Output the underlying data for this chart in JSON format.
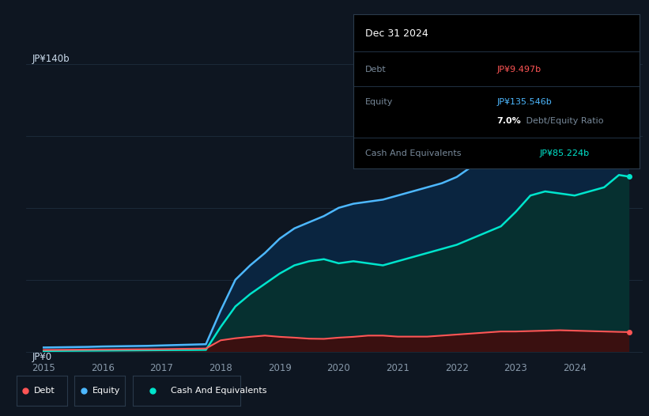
{
  "bg_color": "#0e1621",
  "plot_bg_color": "#0e1621",
  "grid_color": "#1e2d3d",
  "years": [
    2015.0,
    2015.25,
    2015.5,
    2015.75,
    2016.0,
    2016.25,
    2016.5,
    2016.75,
    2017.0,
    2017.25,
    2017.5,
    2017.75,
    2018.0,
    2018.25,
    2018.5,
    2018.75,
    2019.0,
    2019.25,
    2019.5,
    2019.75,
    2020.0,
    2020.25,
    2020.5,
    2020.75,
    2021.0,
    2021.25,
    2021.5,
    2021.75,
    2022.0,
    2022.25,
    2022.5,
    2022.75,
    2023.0,
    2023.25,
    2023.5,
    2023.75,
    2024.0,
    2024.25,
    2024.5,
    2024.75,
    2024.92
  ],
  "equity": [
    2.0,
    2.1,
    2.2,
    2.3,
    2.5,
    2.6,
    2.7,
    2.8,
    3.0,
    3.2,
    3.4,
    3.6,
    20.0,
    35.0,
    42.0,
    48.0,
    55.0,
    60.0,
    63.0,
    66.0,
    70.0,
    72.0,
    73.0,
    74.0,
    76.0,
    78.0,
    80.0,
    82.0,
    85.0,
    90.0,
    95.0,
    100.0,
    110.0,
    118.0,
    122.0,
    125.0,
    128.0,
    130.0,
    132.0,
    140.0,
    135.546
  ],
  "cash": [
    0.3,
    0.35,
    0.4,
    0.45,
    0.5,
    0.55,
    0.6,
    0.65,
    0.7,
    0.75,
    0.8,
    0.85,
    12.0,
    22.0,
    28.0,
    33.0,
    38.0,
    42.0,
    44.0,
    45.0,
    43.0,
    44.0,
    43.0,
    42.0,
    44.0,
    46.0,
    48.0,
    50.0,
    52.0,
    55.0,
    58.0,
    61.0,
    68.0,
    76.0,
    78.0,
    77.0,
    76.0,
    78.0,
    80.0,
    86.0,
    85.224
  ],
  "debt": [
    0.8,
    0.85,
    0.9,
    0.95,
    1.0,
    1.05,
    1.1,
    1.15,
    1.2,
    1.3,
    1.4,
    1.5,
    5.5,
    6.5,
    7.2,
    7.8,
    7.2,
    6.8,
    6.3,
    6.2,
    6.8,
    7.2,
    7.8,
    7.8,
    7.3,
    7.3,
    7.3,
    7.8,
    8.3,
    8.8,
    9.3,
    9.8,
    9.8,
    10.0,
    10.2,
    10.4,
    10.2,
    10.0,
    9.8,
    9.6,
    9.497
  ],
  "equity_color": "#4db8ff",
  "cash_color": "#00e5cc",
  "debt_color": "#ff5555",
  "ylim_min": -3,
  "ylim_max": 155,
  "ylabel_top": "JP¥140b",
  "ylabel_bottom": "JP¥0",
  "xticks": [
    2015,
    2016,
    2017,
    2018,
    2019,
    2020,
    2021,
    2022,
    2023,
    2024
  ],
  "legend_labels": [
    "Debt",
    "Equity",
    "Cash And Equivalents"
  ],
  "legend_colors": [
    "#ff5555",
    "#4db8ff",
    "#00e5cc"
  ],
  "tooltip_date": "Dec 31 2024",
  "tooltip_debt_label": "Debt",
  "tooltip_debt_value": "JP¥9.497b",
  "tooltip_equity_label": "Equity",
  "tooltip_equity_value": "JP¥135.546b",
  "tooltip_ratio": "7.0%",
  "tooltip_ratio_label": " Debt/Equity Ratio",
  "tooltip_cash_label": "Cash And Equivalents",
  "tooltip_cash_value": "JP¥85.224b"
}
